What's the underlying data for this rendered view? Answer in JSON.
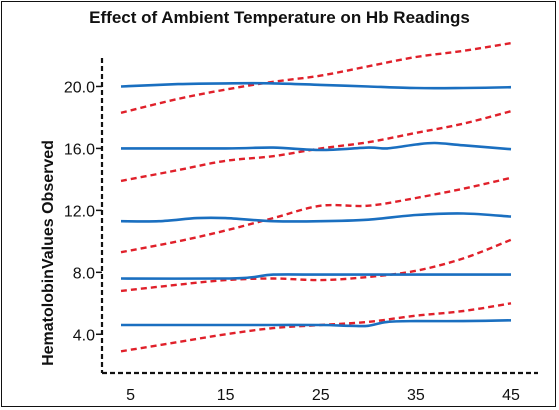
{
  "chart_data": {
    "type": "line",
    "title": "Effect of Ambient Temperature on Hb Readings",
    "xlabel": "",
    "ylabel": "HematolobinValues Observed",
    "xlim": [
      2,
      47
    ],
    "ylim": [
      1.5,
      23.0
    ],
    "x_ticks": [
      5,
      15,
      25,
      35,
      45
    ],
    "y_ticks": [
      "4.0",
      "8.0",
      "12.0",
      "16.0",
      "20.0"
    ],
    "y_tick_values": [
      4.0,
      8.0,
      12.0,
      16.0,
      20.0
    ],
    "grid": false,
    "legend": "none",
    "series_colors": {
      "solid": "#1a6fc0",
      "dashed": "#e0202a"
    },
    "series": [
      {
        "style": "solid",
        "x": [
          4,
          10,
          15,
          20,
          25,
          30,
          35,
          40,
          45
        ],
        "values": [
          20.0,
          20.15,
          20.2,
          20.2,
          20.1,
          20.0,
          19.9,
          19.9,
          19.95
        ]
      },
      {
        "style": "solid",
        "x": [
          4,
          15,
          20,
          25,
          30,
          32,
          35,
          37,
          40,
          45
        ],
        "values": [
          16.0,
          16.0,
          16.05,
          15.9,
          16.05,
          16.0,
          16.25,
          16.35,
          16.2,
          15.95
        ]
      },
      {
        "style": "solid",
        "x": [
          4,
          8,
          12,
          15,
          20,
          25,
          30,
          35,
          40,
          45
        ],
        "values": [
          11.3,
          11.3,
          11.5,
          11.5,
          11.3,
          11.3,
          11.4,
          11.7,
          11.8,
          11.6
        ]
      },
      {
        "style": "solid",
        "x": [
          4,
          15,
          18,
          20,
          25,
          30,
          35,
          40,
          45
        ],
        "values": [
          7.6,
          7.6,
          7.7,
          7.85,
          7.85,
          7.85,
          7.85,
          7.85,
          7.85
        ]
      },
      {
        "style": "solid",
        "x": [
          4,
          15,
          20,
          25,
          28,
          30,
          32,
          35,
          40,
          45
        ],
        "values": [
          4.6,
          4.6,
          4.6,
          4.6,
          4.55,
          4.55,
          4.8,
          4.85,
          4.85,
          4.9
        ]
      },
      {
        "style": "dashed",
        "x": [
          4,
          10,
          15,
          20,
          25,
          30,
          35,
          40,
          45
        ],
        "values": [
          18.3,
          19.2,
          19.8,
          20.3,
          20.7,
          21.3,
          21.9,
          22.3,
          22.8
        ]
      },
      {
        "style": "dashed",
        "x": [
          4,
          10,
          15,
          20,
          25,
          30,
          35,
          40,
          45
        ],
        "values": [
          13.9,
          14.6,
          15.2,
          15.5,
          16.0,
          16.4,
          17.0,
          17.6,
          18.4
        ]
      },
      {
        "style": "dashed",
        "x": [
          4,
          10,
          15,
          20,
          25,
          30,
          35,
          40,
          45
        ],
        "values": [
          9.3,
          10.0,
          10.7,
          11.5,
          12.3,
          12.3,
          12.8,
          13.4,
          14.1
        ]
      },
      {
        "style": "dashed",
        "x": [
          4,
          10,
          15,
          20,
          25,
          30,
          35,
          40,
          45
        ],
        "values": [
          6.8,
          7.2,
          7.5,
          7.6,
          7.5,
          7.7,
          8.1,
          8.9,
          10.1
        ]
      },
      {
        "style": "dashed",
        "x": [
          4,
          10,
          15,
          20,
          25,
          30,
          35,
          40,
          45
        ],
        "values": [
          2.9,
          3.5,
          4.0,
          4.4,
          4.6,
          4.8,
          5.2,
          5.5,
          6.0
        ]
      }
    ]
  }
}
